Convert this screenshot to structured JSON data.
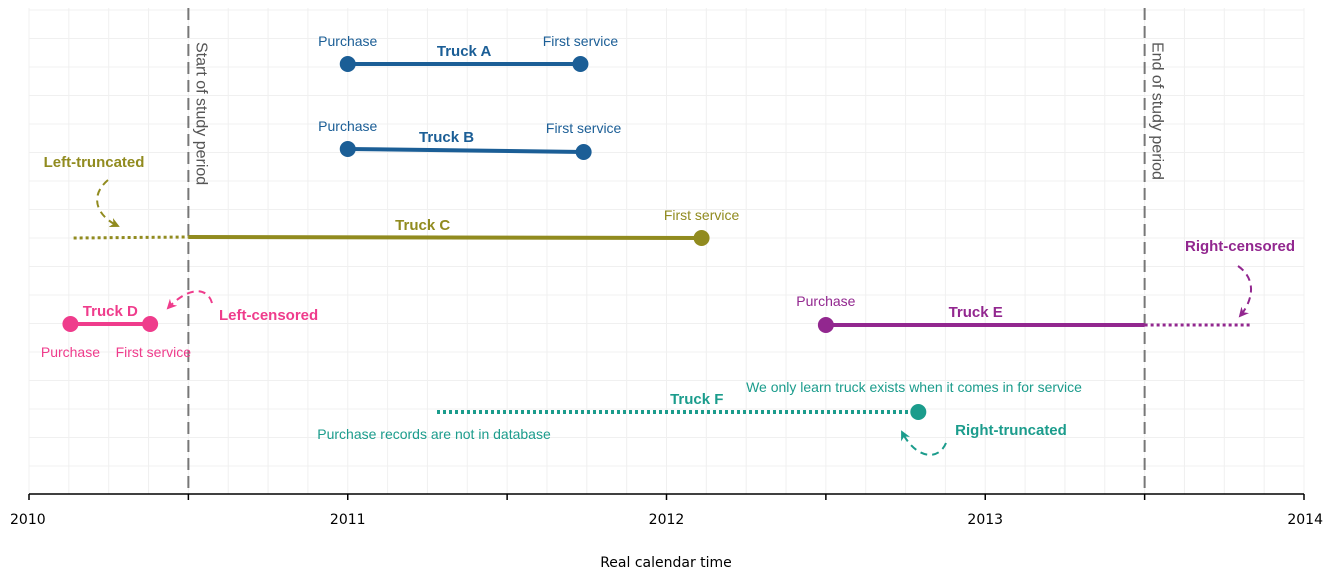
{
  "colors": {
    "blue": "#1b5e96",
    "olive": "#918b1f",
    "pink": "#ef3c8c",
    "purple": "#92278f",
    "teal": "#1b9c8c",
    "vline": "#777777",
    "grid": "#f0f0f0"
  },
  "axis": {
    "title": "Real calendar time",
    "xlim": [
      2010,
      2014
    ],
    "ticks": [
      {
        "value": 2010,
        "label": "2010"
      },
      {
        "value": 2010.5,
        "label": ""
      },
      {
        "value": 2011,
        "label": "2011"
      },
      {
        "value": 2011.5,
        "label": ""
      },
      {
        "value": 2012,
        "label": "2012"
      },
      {
        "value": 2012.5,
        "label": ""
      },
      {
        "value": 2013,
        "label": "2013"
      },
      {
        "value": 2013.5,
        "label": ""
      },
      {
        "value": 2014,
        "label": "2014"
      }
    ]
  },
  "study_period": {
    "start": 2010.5,
    "end": 2013.5,
    "start_label": "Start of study period",
    "end_label": "End of study period"
  },
  "trucks": [
    {
      "id": "a",
      "name": "Truck A",
      "color": "blue",
      "start": 2011.0,
      "end": 2011.73,
      "purchase_label": "Purchase",
      "service_label": "First service"
    },
    {
      "id": "b",
      "name": "Truck B",
      "color": "blue",
      "start": 2011.0,
      "end": 2011.74,
      "purchase_label": "Purchase",
      "service_label": "First service"
    },
    {
      "id": "c",
      "name": "Truck C",
      "color": "olive",
      "dotted_from": 2010.14,
      "start": 2010.5,
      "end": 2012.11,
      "service_label": "First service",
      "annotation": "Left-truncated"
    },
    {
      "id": "d",
      "name": "Truck D",
      "color": "pink",
      "start": 2010.13,
      "end": 2010.38,
      "purchase_label": "Purchase",
      "service_label": "First service",
      "annotation": "Left-censored"
    },
    {
      "id": "e",
      "name": "Truck E",
      "color": "purple",
      "start": 2012.5,
      "end": 2013.5,
      "dotted_to": 2013.83,
      "purchase_label": "Purchase",
      "annotation": "Right-censored"
    },
    {
      "id": "f",
      "name": "Truck F",
      "color": "teal",
      "dotted_from": 2011.28,
      "end": 2012.79,
      "note_top": "We only learn truck exists when it comes in for service",
      "note_bottom": "Purchase records are not in database",
      "annotation": "Right-truncated"
    }
  ]
}
